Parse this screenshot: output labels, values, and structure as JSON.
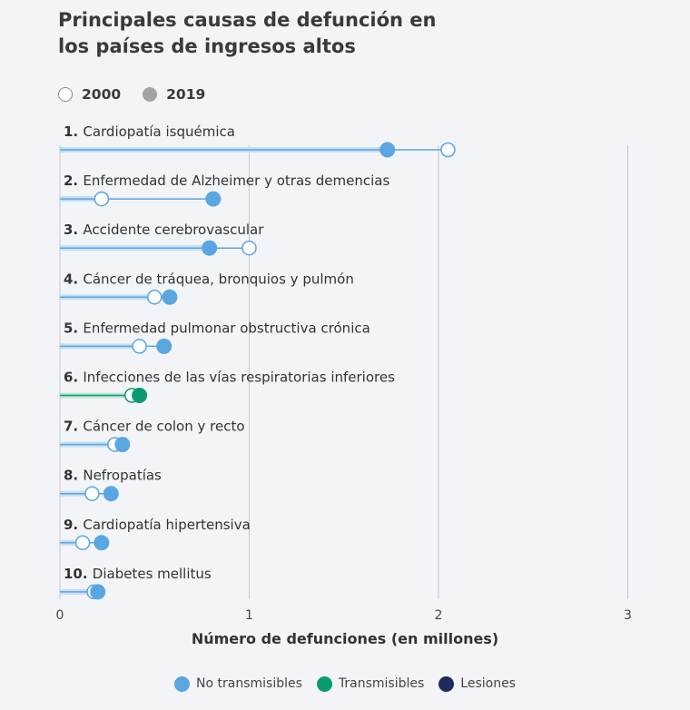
{
  "chart_data": {
    "type": "dumbbell",
    "title_lines": [
      "Principales causas de defunción en",
      "los países de ingresos altos"
    ],
    "xlabel": "Número de defunciones (en millones)",
    "xlim": [
      0,
      3
    ],
    "xticks": [
      "0",
      "1",
      "2",
      "3"
    ],
    "year_legend": [
      {
        "label": "2000",
        "style": "open"
      },
      {
        "label": "2019",
        "style": "filled"
      }
    ],
    "category_legend": [
      {
        "label": "No transmisibles",
        "color": "#5aa6e0"
      },
      {
        "label": "Transmisibles",
        "color": "#0c9a72"
      },
      {
        "label": "Lesiones",
        "color": "#1e2b5e"
      }
    ],
    "rows": [
      {
        "rank": "1.",
        "label": "Cardiopatía isquémica",
        "category": "No transmisibles",
        "v2000": 2.05,
        "v2019": 1.73
      },
      {
        "rank": "2.",
        "label": "Enfermedad de Alzheimer y otras demencias",
        "category": "No transmisibles",
        "v2000": 0.22,
        "v2019": 0.81
      },
      {
        "rank": "3.",
        "label": "Accidente cerebrovascular",
        "category": "No transmisibles",
        "v2000": 1.0,
        "v2019": 0.79
      },
      {
        "rank": "4.",
        "label": "Cáncer de tráquea, bronquios y pulmón",
        "category": "No transmisibles",
        "v2000": 0.5,
        "v2019": 0.58
      },
      {
        "rank": "5.",
        "label": "Enfermedad pulmonar obstructiva crónica",
        "category": "No transmisibles",
        "v2000": 0.42,
        "v2019": 0.55
      },
      {
        "rank": "6.",
        "label": "Infecciones de las vías respiratorias inferiores",
        "category": "Transmisibles",
        "v2000": 0.38,
        "v2019": 0.42
      },
      {
        "rank": "7.",
        "label": "Cáncer de colon y recto",
        "category": "No transmisibles",
        "v2000": 0.29,
        "v2019": 0.33
      },
      {
        "rank": "8.",
        "label": "Nefropatías",
        "category": "No transmisibles",
        "v2000": 0.17,
        "v2019": 0.27
      },
      {
        "rank": "9.",
        "label": "Cardiopatía hipertensiva",
        "category": "No transmisibles",
        "v2000": 0.12,
        "v2019": 0.22
      },
      {
        "rank": "10.",
        "label": "Diabetes mellitus",
        "category": "No transmisibles",
        "v2000": 0.18,
        "v2019": 0.2
      }
    ]
  }
}
